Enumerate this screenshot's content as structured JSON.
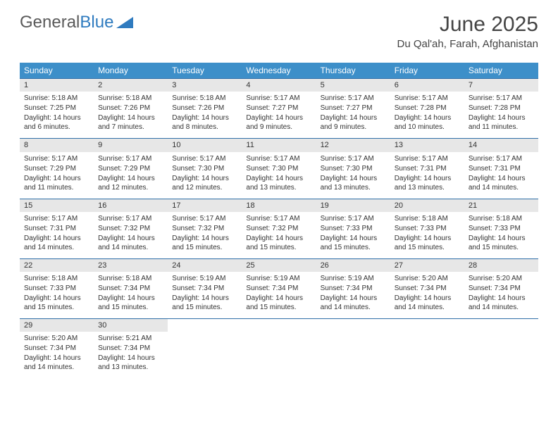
{
  "logo": {
    "text1": "General",
    "text2": "Blue"
  },
  "title": "June 2025",
  "location": "Du Qal'ah, Farah, Afghanistan",
  "colors": {
    "header_bg": "#3d8fc9",
    "header_text": "#ffffff",
    "daynum_bg": "#e7e7e7",
    "row_border": "#2f6fa8",
    "logo_gray": "#5a5a5a",
    "logo_blue": "#2f7bbf"
  },
  "weekdays": [
    "Sunday",
    "Monday",
    "Tuesday",
    "Wednesday",
    "Thursday",
    "Friday",
    "Saturday"
  ],
  "days": [
    {
      "n": "1",
      "sunrise": "5:18 AM",
      "sunset": "7:25 PM",
      "daylight": "14 hours and 6 minutes."
    },
    {
      "n": "2",
      "sunrise": "5:18 AM",
      "sunset": "7:26 PM",
      "daylight": "14 hours and 7 minutes."
    },
    {
      "n": "3",
      "sunrise": "5:18 AM",
      "sunset": "7:26 PM",
      "daylight": "14 hours and 8 minutes."
    },
    {
      "n": "4",
      "sunrise": "5:17 AM",
      "sunset": "7:27 PM",
      "daylight": "14 hours and 9 minutes."
    },
    {
      "n": "5",
      "sunrise": "5:17 AM",
      "sunset": "7:27 PM",
      "daylight": "14 hours and 9 minutes."
    },
    {
      "n": "6",
      "sunrise": "5:17 AM",
      "sunset": "7:28 PM",
      "daylight": "14 hours and 10 minutes."
    },
    {
      "n": "7",
      "sunrise": "5:17 AM",
      "sunset": "7:28 PM",
      "daylight": "14 hours and 11 minutes."
    },
    {
      "n": "8",
      "sunrise": "5:17 AM",
      "sunset": "7:29 PM",
      "daylight": "14 hours and 11 minutes."
    },
    {
      "n": "9",
      "sunrise": "5:17 AM",
      "sunset": "7:29 PM",
      "daylight": "14 hours and 12 minutes."
    },
    {
      "n": "10",
      "sunrise": "5:17 AM",
      "sunset": "7:30 PM",
      "daylight": "14 hours and 12 minutes."
    },
    {
      "n": "11",
      "sunrise": "5:17 AM",
      "sunset": "7:30 PM",
      "daylight": "14 hours and 13 minutes."
    },
    {
      "n": "12",
      "sunrise": "5:17 AM",
      "sunset": "7:30 PM",
      "daylight": "14 hours and 13 minutes."
    },
    {
      "n": "13",
      "sunrise": "5:17 AM",
      "sunset": "7:31 PM",
      "daylight": "14 hours and 13 minutes."
    },
    {
      "n": "14",
      "sunrise": "5:17 AM",
      "sunset": "7:31 PM",
      "daylight": "14 hours and 14 minutes."
    },
    {
      "n": "15",
      "sunrise": "5:17 AM",
      "sunset": "7:31 PM",
      "daylight": "14 hours and 14 minutes."
    },
    {
      "n": "16",
      "sunrise": "5:17 AM",
      "sunset": "7:32 PM",
      "daylight": "14 hours and 14 minutes."
    },
    {
      "n": "17",
      "sunrise": "5:17 AM",
      "sunset": "7:32 PM",
      "daylight": "14 hours and 15 minutes."
    },
    {
      "n": "18",
      "sunrise": "5:17 AM",
      "sunset": "7:32 PM",
      "daylight": "14 hours and 15 minutes."
    },
    {
      "n": "19",
      "sunrise": "5:17 AM",
      "sunset": "7:33 PM",
      "daylight": "14 hours and 15 minutes."
    },
    {
      "n": "20",
      "sunrise": "5:18 AM",
      "sunset": "7:33 PM",
      "daylight": "14 hours and 15 minutes."
    },
    {
      "n": "21",
      "sunrise": "5:18 AM",
      "sunset": "7:33 PM",
      "daylight": "14 hours and 15 minutes."
    },
    {
      "n": "22",
      "sunrise": "5:18 AM",
      "sunset": "7:33 PM",
      "daylight": "14 hours and 15 minutes."
    },
    {
      "n": "23",
      "sunrise": "5:18 AM",
      "sunset": "7:34 PM",
      "daylight": "14 hours and 15 minutes."
    },
    {
      "n": "24",
      "sunrise": "5:19 AM",
      "sunset": "7:34 PM",
      "daylight": "14 hours and 15 minutes."
    },
    {
      "n": "25",
      "sunrise": "5:19 AM",
      "sunset": "7:34 PM",
      "daylight": "14 hours and 15 minutes."
    },
    {
      "n": "26",
      "sunrise": "5:19 AM",
      "sunset": "7:34 PM",
      "daylight": "14 hours and 14 minutes."
    },
    {
      "n": "27",
      "sunrise": "5:20 AM",
      "sunset": "7:34 PM",
      "daylight": "14 hours and 14 minutes."
    },
    {
      "n": "28",
      "sunrise": "5:20 AM",
      "sunset": "7:34 PM",
      "daylight": "14 hours and 14 minutes."
    },
    {
      "n": "29",
      "sunrise": "5:20 AM",
      "sunset": "7:34 PM",
      "daylight": "14 hours and 14 minutes."
    },
    {
      "n": "30",
      "sunrise": "5:21 AM",
      "sunset": "7:34 PM",
      "daylight": "14 hours and 13 minutes."
    }
  ],
  "labels": {
    "sunrise": "Sunrise:",
    "sunset": "Sunset:",
    "daylight": "Daylight:"
  }
}
